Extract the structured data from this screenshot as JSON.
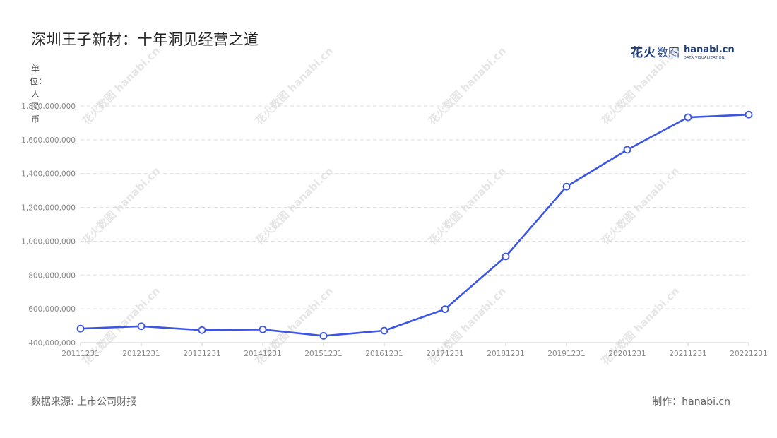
{
  "title": "深圳王子新材：十年洞见经营之道",
  "logo": {
    "cn_bold": "花火",
    "cn_light": "数图",
    "en": "hanabi.cn",
    "sub": "DATA VISUALIZATION"
  },
  "unit_label": "单位：人民币",
  "footer": {
    "source": "数据来源: 上市公司财报",
    "maker": "制作：hanabi.cn"
  },
  "watermark_text": "花火数图 hanabi.cn",
  "colors": {
    "line": "#3b55e6",
    "grid": "#dddddd",
    "axis": "#cccccc"
  },
  "chart_data": {
    "type": "line",
    "title": "深圳王子新材：十年洞见经营之道",
    "ylabel": "单位：人民币",
    "categories": [
      "20111231",
      "20121231",
      "20131231",
      "20141231",
      "20151231",
      "20161231",
      "20171231",
      "20181231",
      "20191231",
      "20201231",
      "20211231",
      "20221231"
    ],
    "series": [
      {
        "values": [
          483000000,
          497000000,
          474000000,
          478000000,
          440000000,
          471000000,
          598000000,
          910000000,
          1323000000,
          1541000000,
          1733000000,
          1749000000
        ]
      }
    ],
    "ylim": [
      400000000,
      1800000000
    ],
    "yticks": [
      400000000,
      600000000,
      800000000,
      1000000000,
      1200000000,
      1400000000,
      1600000000,
      1800000000
    ],
    "ytick_labels": [
      "400,000,000",
      "600,000,000",
      "800,000,000",
      "1,000,000,000",
      "1,200,000,000",
      "1,400,000,000",
      "1,600,000,000",
      "1,800,000,000"
    ],
    "grid": true,
    "legend": "none"
  }
}
